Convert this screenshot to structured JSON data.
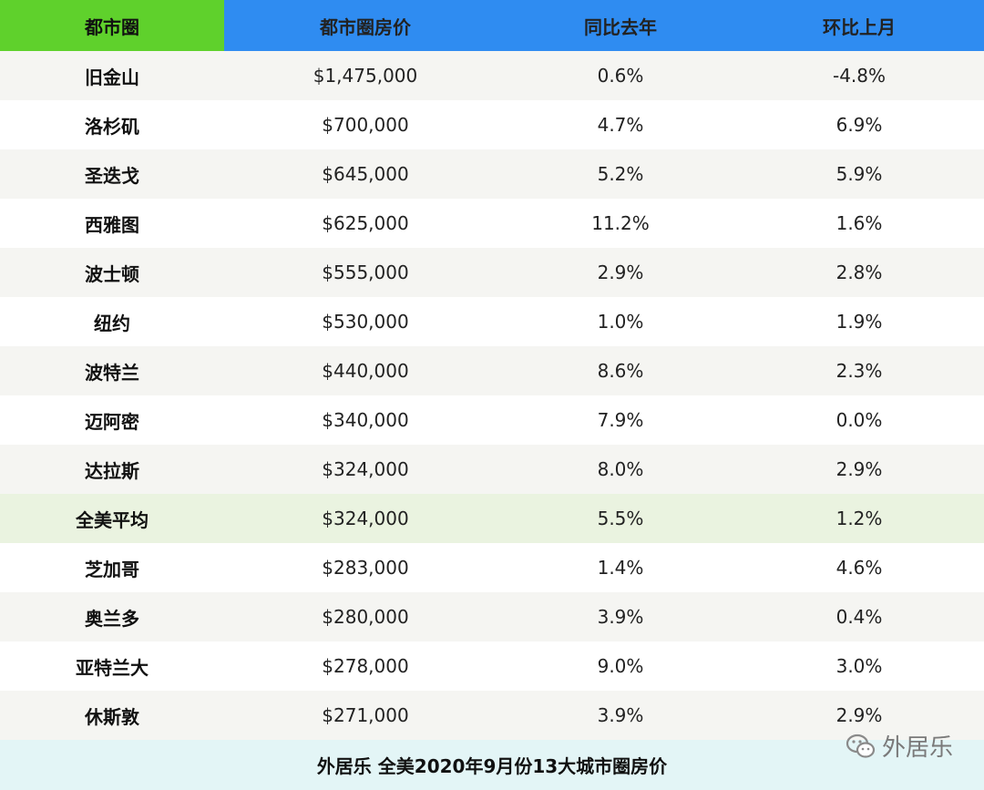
{
  "table": {
    "headers": [
      "都市圈",
      "都市圈房价",
      "同比去年",
      "环比上月"
    ],
    "rows": [
      [
        "旧金山",
        "$1,475,000",
        "0.6%",
        "-4.8%"
      ],
      [
        "洛杉矶",
        "$700,000",
        "4.7%",
        "6.9%"
      ],
      [
        "圣迭戈",
        "$645,000",
        "5.2%",
        "5.9%"
      ],
      [
        "西雅图",
        "$625,000",
        "11.2%",
        "1.6%"
      ],
      [
        "波士顿",
        "$555,000",
        "2.9%",
        "2.8%"
      ],
      [
        "纽约",
        "$530,000",
        "1.0%",
        "1.9%"
      ],
      [
        "波特兰",
        "$440,000",
        "8.6%",
        "2.3%"
      ],
      [
        "迈阿密",
        "$340,000",
        "7.9%",
        "0.0%"
      ],
      [
        "达拉斯",
        "$324,000",
        "8.0%",
        "2.9%"
      ],
      [
        "全美平均",
        "$324,000",
        "5.5%",
        "1.2%"
      ],
      [
        "芝加哥",
        "$283,000",
        "1.4%",
        "4.6%"
      ],
      [
        "奥兰多",
        "$280,000",
        "3.9%",
        "0.4%"
      ],
      [
        "亚特兰大",
        "$278,000",
        "9.0%",
        "3.0%"
      ],
      [
        "休斯敦",
        "$271,000",
        "3.9%",
        "2.9%"
      ]
    ]
  },
  "footer": {
    "title": "外居乐 全美2020年9月份13大城市圈房价"
  },
  "watermark": {
    "text": "外居乐",
    "icon": "wechat-icon"
  },
  "colors": {
    "header_green": "#5fd12c",
    "header_blue": "#2f8cf1",
    "average_row": "#eaf3e0",
    "footer_bg": "#e3f5f6"
  },
  "chart_data": {
    "type": "table",
    "title": "外居乐 全美2020年9月份13大城市圈房价",
    "columns": [
      "都市圈",
      "都市圈房价",
      "同比去年",
      "环比上月"
    ],
    "rows": [
      {
        "metro": "旧金山",
        "price": 1475000,
        "yoy": 0.6,
        "mom": -4.8
      },
      {
        "metro": "洛杉矶",
        "price": 700000,
        "yoy": 4.7,
        "mom": 6.9
      },
      {
        "metro": "圣迭戈",
        "price": 645000,
        "yoy": 5.2,
        "mom": 5.9
      },
      {
        "metro": "西雅图",
        "price": 625000,
        "yoy": 11.2,
        "mom": 1.6
      },
      {
        "metro": "波士顿",
        "price": 555000,
        "yoy": 2.9,
        "mom": 2.8
      },
      {
        "metro": "纽约",
        "price": 530000,
        "yoy": 1.0,
        "mom": 1.9
      },
      {
        "metro": "波特兰",
        "price": 440000,
        "yoy": 8.6,
        "mom": 2.3
      },
      {
        "metro": "迈阿密",
        "price": 340000,
        "yoy": 7.9,
        "mom": 0.0
      },
      {
        "metro": "达拉斯",
        "price": 324000,
        "yoy": 8.0,
        "mom": 2.9
      },
      {
        "metro": "全美平均",
        "price": 324000,
        "yoy": 5.5,
        "mom": 1.2
      },
      {
        "metro": "芝加哥",
        "price": 283000,
        "yoy": 1.4,
        "mom": 4.6
      },
      {
        "metro": "奥兰多",
        "price": 280000,
        "yoy": 3.9,
        "mom": 0.4
      },
      {
        "metro": "亚特兰大",
        "price": 278000,
        "yoy": 9.0,
        "mom": 3.0
      },
      {
        "metro": "休斯敦",
        "price": 271000,
        "yoy": 3.9,
        "mom": 2.9
      }
    ]
  }
}
